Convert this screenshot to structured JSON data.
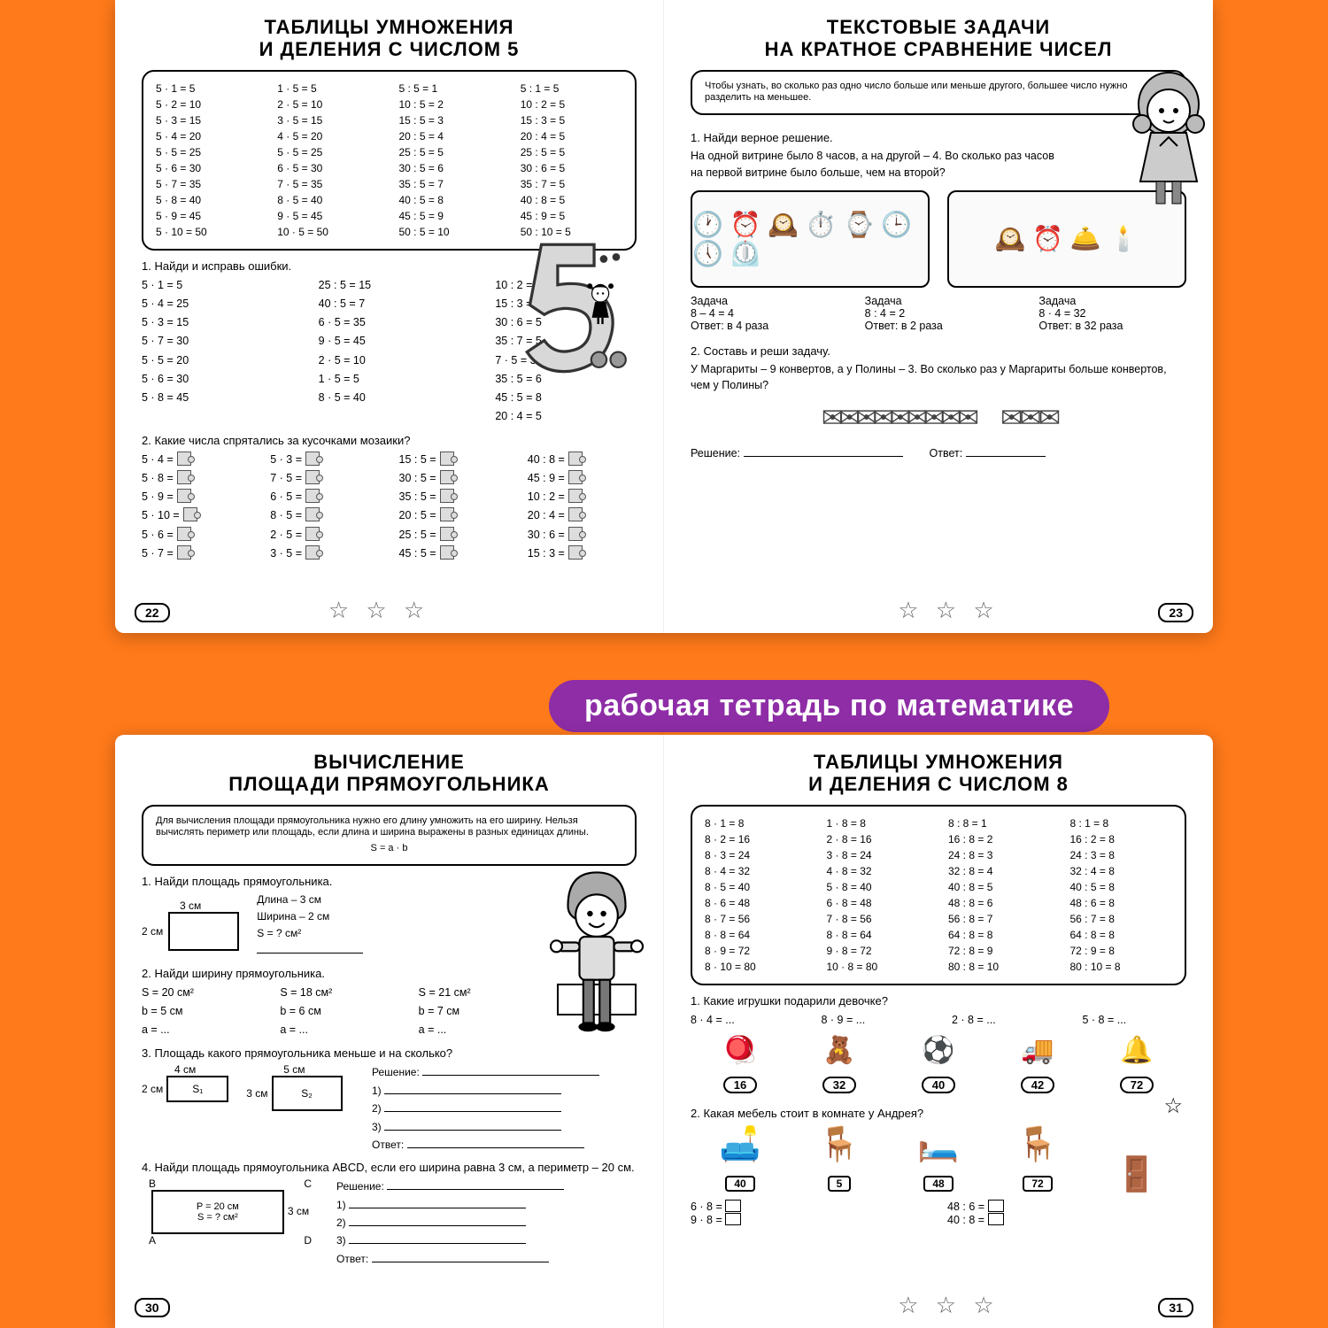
{
  "badge": "рабочая тетрадь по математике",
  "colors": {
    "bg": "#ff7a1a",
    "badge_bg": "#8e2da6",
    "badge_fg": "#ffffff",
    "page_bg": "#ffffff",
    "border": "#000000"
  },
  "page22": {
    "num": "22",
    "title1": "ТАБЛИЦЫ УМНОЖЕНИЯ",
    "title2": "И ДЕЛЕНИЯ С ЧИСЛОМ 5",
    "table_cols": [
      [
        "5 · 1 = 5",
        "5 · 2 = 10",
        "5 · 3 = 15",
        "5 · 4 = 20",
        "5 · 5 = 25",
        "5 · 6 = 30",
        "5 · 7 = 35",
        "5 · 8 = 40",
        "5 · 9 = 45",
        "5 · 10 = 50"
      ],
      [
        "1 · 5 = 5",
        "2 · 5 = 10",
        "3 · 5 = 15",
        "4 · 5 = 20",
        "5 · 5 = 25",
        "6 · 5 = 30",
        "7 · 5 = 35",
        "8 · 5 = 40",
        "9 · 5 = 45",
        "10 · 5 = 50"
      ],
      [
        "5 : 5 = 1",
        "10 : 5 = 2",
        "15 : 5 = 3",
        "20 : 5 = 4",
        "25 : 5 = 5",
        "30 : 5 = 6",
        "35 : 5 = 7",
        "40 : 5 = 8",
        "45 : 5 = 9",
        "50 : 5 = 10"
      ],
      [
        "5 : 1 = 5",
        "10 : 2 = 5",
        "15 : 3 = 5",
        "20 : 4 = 5",
        "25 : 5 = 5",
        "30 : 6 = 5",
        "35 : 7 = 5",
        "40 : 8 = 5",
        "45 : 9 = 5",
        "50 : 10 = 5"
      ]
    ],
    "t1": "1. Найди и исправь ошибки.",
    "t1cols": [
      [
        "5 · 1 = 5",
        "5 · 4 = 25",
        "5 · 3 = 15",
        "5 · 7 = 30",
        "5 · 5 = 20",
        "5 · 6 = 30",
        "5 · 8 = 45"
      ],
      [
        "25 : 5 = 15",
        "40 : 5 = 7",
        "6 · 5 = 35",
        "9 · 5 = 45",
        "2 · 5 = 10",
        "1 · 5 = 5",
        "8 · 5 = 40"
      ],
      [
        "10 : 2 = 5",
        "15 : 3 = 10",
        "30 : 6 = 5",
        "35 : 7 = 5",
        "7 · 5 = 35",
        "35 : 5 = 6",
        "45 : 5 = 8",
        "20 : 4 = 5"
      ]
    ],
    "t2": "2. Какие числа спрятались за кусочками мозаики?",
    "t2cols": [
      [
        "5 · 4 =",
        "5 · 8 =",
        "5 · 9 =",
        "5 · 10 =",
        "5 · 6 =",
        "5 · 7 ="
      ],
      [
        "5 · 3 =",
        "7 · 5 =",
        "6 · 5 =",
        "8 · 5 =",
        "2 · 5 =",
        "3 · 5 ="
      ],
      [
        "15 : 5 =",
        "30 : 5 =",
        "35 : 5 =",
        "20 : 5 =",
        "25 : 5 =",
        "45 : 5 ="
      ],
      [
        "40 : 8 =",
        "45 : 9 =",
        "10 : 2 =",
        "20 : 4 =",
        "30 : 6 =",
        "15 : 3 ="
      ]
    ]
  },
  "page23": {
    "num": "23",
    "title1": "ТЕКСТОВЫЕ ЗАДАЧИ",
    "title2": "НА КРАТНОЕ СРАВНЕНИЕ ЧИСЕЛ",
    "rule": "Чтобы узнать, во сколько раз одно число больше или меньше другого, большее число нужно разделить на меньшее.",
    "t1a": "1. Найди верное решение.",
    "t1b": "На одной витрине было 8 часов, а на другой – 4. Во сколько раз часов на первой витрине было больше, чем на второй?",
    "opts": [
      {
        "h": "Задача",
        "l1": "8 – 4 = 4",
        "l2": "Ответ: в 4 раза"
      },
      {
        "h": "Задача",
        "l1": "8 : 4 = 2",
        "l2": "Ответ: в 2 раза"
      },
      {
        "h": "Задача",
        "l1": "8 · 4 = 32",
        "l2": "Ответ: в 32 раза"
      }
    ],
    "t2a": "2. Составь и реши задачу.",
    "t2b": "У Маргариты – 9 конвертов, а у Полины – 3. Во сколько раз у Маргариты больше конвертов, чем у Полины?",
    "sol": "Решение:",
    "ans": "Ответ:"
  },
  "page30": {
    "num": "30",
    "title1": "ВЫЧИСЛЕНИЕ",
    "title2": "ПЛОЩАДИ ПРЯМОУГОЛЬНИКА",
    "rule": "Для вычисления площади прямоугольника нужно его длину умножить на его ширину. Нельзя вычислять периметр или площадь, если длина и ширина выражены в разных единицах длины.",
    "formula": "S = a · b",
    "t1": "1. Найди площадь прямоугольника.",
    "t1vals": [
      "Длина – 3 см",
      "Ширина – 2 см",
      "S = ? см²"
    ],
    "t1dim_top": "3 см",
    "t1dim_left": "2 см",
    "t2": "2. Найди ширину прямоугольника.",
    "t2cols": [
      [
        "S = 20 см²",
        "b = 5 см",
        "a = ..."
      ],
      [
        "S = 18 см²",
        "b = 6 см",
        "a = ..."
      ],
      [
        "S = 21 см²",
        "b = 7 см",
        "a = ..."
      ]
    ],
    "t3": "3. Площадь какого прямоугольника меньше и на сколько?",
    "t3_s1": "S₁",
    "t3_s2": "S₂",
    "t3_4": "4 см",
    "t3_5": "5 см",
    "t3_2": "2 см",
    "t3_3": "3 см",
    "t3lines": [
      "Решение:",
      "1)",
      "2)",
      "3)",
      "Ответ:"
    ],
    "t4": "4. Найди площадь прямоугольника ABCD, если его ширина равна 3 см, а периметр – 20 см.",
    "t4box": [
      "P = 20 см",
      "S = ? см²"
    ],
    "t4_B": "B",
    "t4_C": "C",
    "t4_A": "A",
    "t4_D": "D",
    "t4_3": "3 см",
    "t4lines": [
      "Решение:",
      "1)",
      "2)",
      "3)",
      "Ответ:"
    ]
  },
  "page31": {
    "num": "31",
    "title1": "ТАБЛИЦЫ УМНОЖЕНИЯ",
    "title2": "И ДЕЛЕНИЯ С ЧИСЛОМ 8",
    "table_cols": [
      [
        "8 · 1 = 8",
        "8 · 2 = 16",
        "8 · 3 = 24",
        "8 · 4 = 32",
        "8 · 5 = 40",
        "8 · 6 = 48",
        "8 · 7 = 56",
        "8 · 8 = 64",
        "8 · 9 = 72",
        "8 · 10 = 80"
      ],
      [
        "1 · 8 = 8",
        "2 · 8 = 16",
        "3 · 8 = 24",
        "4 · 8 = 32",
        "5 · 8 = 40",
        "6 · 8 = 48",
        "7 · 8 = 56",
        "8 · 8 = 64",
        "9 · 8 = 72",
        "10 · 8 = 80"
      ],
      [
        "8 : 8 = 1",
        "16 : 8 = 2",
        "24 : 8 = 3",
        "32 : 8 = 4",
        "40 : 8 = 5",
        "48 : 8 = 6",
        "56 : 8 = 7",
        "64 : 8 = 8",
        "72 : 8 = 9",
        "80 : 8 = 10"
      ],
      [
        "8 : 1 = 8",
        "16 : 2 = 8",
        "24 : 3 = 8",
        "32 : 4 = 8",
        "40 : 5 = 8",
        "48 : 6 = 8",
        "56 : 7 = 8",
        "64 : 8 = 8",
        "72 : 9 = 8",
        "80 : 10 = 8"
      ]
    ],
    "t1": "1. Какие игрушки подарили девочке?",
    "t1eq": [
      "8 · 4 = ...",
      "8 · 9 = ...",
      "2 · 8 = ...",
      "5 · 8 = ..."
    ],
    "toys": [
      {
        "icon": "🪀",
        "num": "16"
      },
      {
        "icon": "🧸",
        "num": "32"
      },
      {
        "icon": "⚽",
        "num": "40"
      },
      {
        "icon": "🚚",
        "num": "42"
      },
      {
        "icon": "🔔",
        "num": "72"
      }
    ],
    "t2": "2. Какая мебель стоит в комнате у Андрея?",
    "furn": [
      {
        "icon": "🛋️",
        "num": "40"
      },
      {
        "icon": "🪑",
        "num": "5"
      },
      {
        "icon": "🛏️",
        "num": "48"
      },
      {
        "icon": "🪑",
        "num": "72"
      },
      {
        "icon": "🚪",
        "num": ""
      }
    ],
    "t2eq_l": [
      "6 · 8 =",
      "9 · 8 ="
    ],
    "t2eq_r": [
      "48 : 6 =",
      "40 : 8 ="
    ]
  }
}
